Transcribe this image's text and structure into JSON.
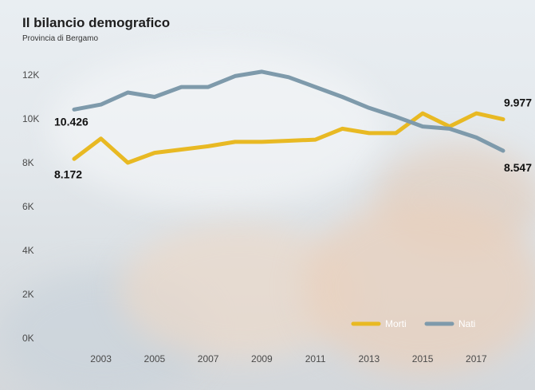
{
  "header": {
    "title": "Il bilancio demografico",
    "subtitle": "Provincia di Bergamo"
  },
  "chart_data": {
    "type": "line",
    "title": "Il bilancio demografico",
    "subtitle": "Provincia di Bergamo",
    "x": [
      2002,
      2003,
      2004,
      2005,
      2006,
      2007,
      2008,
      2009,
      2010,
      2011,
      2012,
      2013,
      2014,
      2015,
      2016,
      2017,
      2018
    ],
    "x_ticks": [
      2003,
      2005,
      2007,
      2009,
      2011,
      2013,
      2015,
      2017
    ],
    "y_ticks": [
      0,
      2000,
      4000,
      6000,
      8000,
      10000,
      12000
    ],
    "y_tick_labels": [
      "0K",
      "2K",
      "4K",
      "6K",
      "8K",
      "10K",
      "12K"
    ],
    "ylim": [
      0,
      12000
    ],
    "xlim": [
      2002,
      2018
    ],
    "legend_position": "bottom-right",
    "series": [
      {
        "name": "Morti",
        "color": "#e8b923",
        "values": [
          8172,
          9100,
          8000,
          8450,
          8600,
          8750,
          8950,
          8950,
          9000,
          9050,
          9550,
          9350,
          9350,
          10250,
          9650,
          10250,
          9977
        ]
      },
      {
        "name": "Nati",
        "color": "#7e9aab",
        "values": [
          10426,
          10650,
          11200,
          11000,
          11450,
          11450,
          11950,
          12150,
          11900,
          11450,
          11000,
          10500,
          10100,
          9650,
          9550,
          9150,
          8547
        ]
      }
    ],
    "annotations": [
      {
        "text": "10.426",
        "series": "Nati",
        "x": 2002
      },
      {
        "text": "8.172",
        "series": "Morti",
        "x": 2002
      },
      {
        "text": "9.977",
        "series": "Morti",
        "x": 2018
      },
      {
        "text": "8.547",
        "series": "Nati",
        "x": 2018
      }
    ]
  }
}
